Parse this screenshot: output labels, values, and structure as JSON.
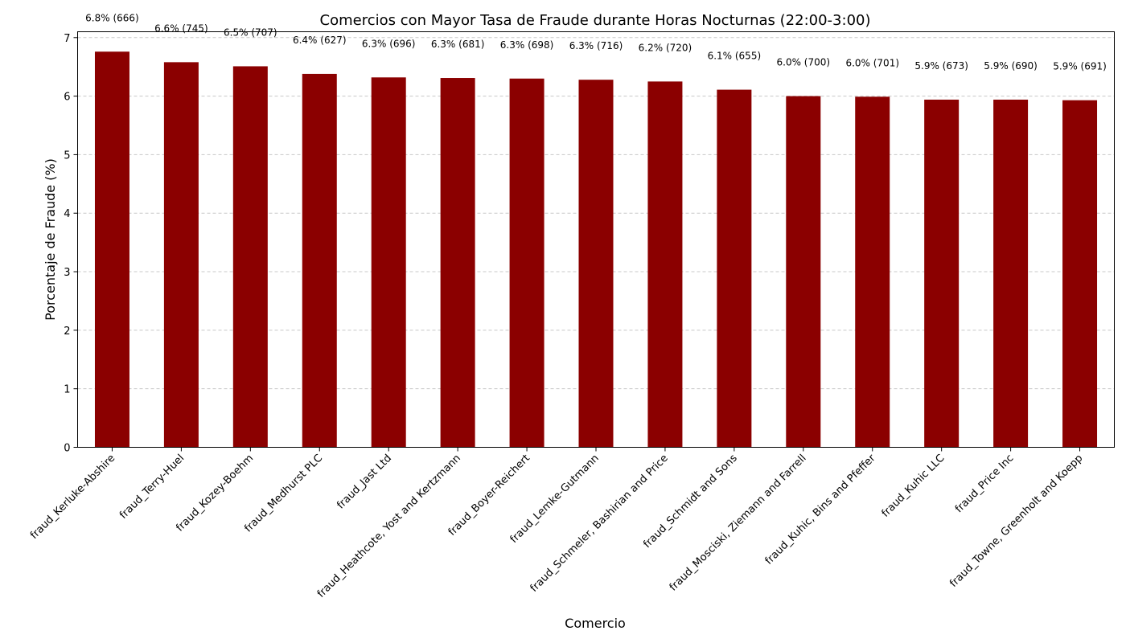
{
  "chart_data": {
    "type": "bar",
    "title": "Comercios con Mayor Tasa de Fraude durante Horas Nocturnas (22:00-3:00)",
    "xlabel": "Comercio",
    "ylabel": "Porcentaje de Fraude (%)",
    "ylim": [
      0,
      7.1
    ],
    "yticks": [
      0,
      1,
      2,
      3,
      4,
      5,
      6,
      7
    ],
    "grid": "y-dashed",
    "bar_color": "#8b0000",
    "categories": [
      "fraud_Kerluke-Abshire",
      "fraud_Terry-Huel",
      "fraud_Kozey-Boehm",
      "fraud_Medhurst PLC",
      "fraud_Jast Ltd",
      "fraud_Heathcote, Yost and Kertzmann",
      "fraud_Boyer-Reichert",
      "fraud_Lemke-Gutmann",
      "fraud_Schmeler, Bashirian and Price",
      "fraud_Schmidt and Sons",
      "fraud_Mosciski, Ziemann and Farrell",
      "fraud_Kuhic, Bins and Pfeffer",
      "fraud_Kuhic LLC",
      "fraud_Price Inc",
      "fraud_Towne, Greenholt and Koepp"
    ],
    "values": [
      6.76,
      6.58,
      6.51,
      6.38,
      6.32,
      6.31,
      6.3,
      6.28,
      6.25,
      6.11,
      6.0,
      5.99,
      5.94,
      5.94,
      5.93
    ],
    "data_labels": [
      "6.8% (666)",
      "6.6% (745)",
      "6.5% (707)",
      "6.4% (627)",
      "6.3% (696)",
      "6.3% (681)",
      "6.3% (698)",
      "6.3% (716)",
      "6.2% (720)",
      "6.1% (655)",
      "6.0% (700)",
      "6.0% (701)",
      "5.9% (673)",
      "5.9% (690)",
      "5.9% (691)"
    ]
  }
}
